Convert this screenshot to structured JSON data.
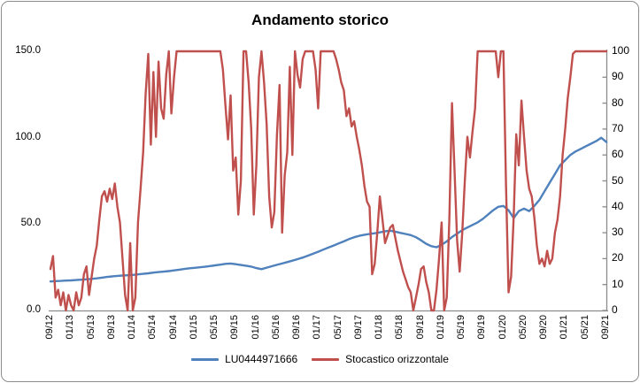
{
  "title": "Andamento storico",
  "colors": {
    "series_blue": "#4f81bd",
    "series_red": "#c0504d",
    "axis": "#8c8c8c",
    "border": "#8c8c8c",
    "text": "#000000"
  },
  "legend": {
    "items": [
      {
        "label": "LU0444971666",
        "color": "#4f81bd"
      },
      {
        "label": "Stocastico orizzontale",
        "color": "#c0504d"
      }
    ]
  },
  "chart_data": {
    "type": "line",
    "title": "Andamento storico",
    "grid": false,
    "legend_position": "bottom",
    "x_start": "09/12",
    "x_end": "09/21",
    "x_range_months": 108,
    "x_tick_labels": [
      "09/12",
      "01/13",
      "05/13",
      "09/13",
      "01/14",
      "05/14",
      "09/14",
      "01/15",
      "05/15",
      "09/15",
      "01/16",
      "05/16",
      "09/16",
      "01/17",
      "05/17",
      "09/17",
      "01/18",
      "05/18",
      "09/18",
      "01/19",
      "05/19",
      "09/19",
      "01/20",
      "05/20",
      "09/20",
      "01/21",
      "05/21",
      "09/21"
    ],
    "left_axis": {
      "range": [
        0,
        150
      ],
      "tick_step": 50,
      "tick_labels": [
        "0.0",
        "50.0",
        "100.0",
        "150.0"
      ],
      "applies_to": "LU0444971666"
    },
    "right_axis": {
      "range": [
        0,
        100
      ],
      "tick_step": 10,
      "tick_labels": [
        "0",
        "10",
        "20",
        "30",
        "40",
        "50",
        "60",
        "70",
        "80",
        "90",
        "100"
      ],
      "applies_to": "Stocastico orizzontale"
    },
    "series": [
      {
        "name": "LU0444971666",
        "axis": "left",
        "color": "#4f81bd",
        "sampling": "monthly from 09/2012 to 09/2021",
        "points_per_month": 1,
        "values": [
          16.8,
          17.0,
          17.1,
          17.3,
          17.4,
          17.6,
          17.8,
          18.0,
          18.3,
          18.6,
          19.0,
          19.4,
          19.7,
          20.0,
          20.2,
          20.4,
          20.6,
          20.9,
          21.2,
          21.5,
          21.9,
          22.2,
          22.5,
          22.8,
          23.2,
          23.6,
          24.0,
          24.4,
          24.7,
          25.0,
          25.3,
          25.7,
          26.1,
          26.5,
          27.0,
          27.2,
          26.8,
          26.3,
          25.9,
          25.4,
          24.5,
          23.9,
          24.8,
          25.6,
          26.4,
          27.2,
          28.0,
          28.8,
          29.7,
          30.6,
          31.7,
          32.8,
          34.0,
          35.2,
          36.4,
          37.6,
          38.8,
          40.0,
          41.3,
          42.4,
          43.2,
          43.8,
          44.3,
          44.7,
          45.2,
          45.8,
          46.2,
          45.6,
          44.9,
          44.3,
          43.6,
          42.4,
          40.6,
          38.6,
          37.2,
          36.6,
          38.0,
          40.0,
          42.5,
          44.5,
          46.5,
          48.0,
          49.5,
          51.0,
          53.0,
          55.5,
          58.0,
          60.0,
          60.5,
          58.0,
          53.5,
          57.5,
          59.0,
          57.5,
          60.5,
          64.0,
          69.0,
          74.0,
          79.0,
          84.0,
          87.0,
          90.0,
          92.0,
          93.5,
          95.0,
          96.5,
          98.0,
          100.0,
          97.5
        ]
      },
      {
        "name": "Stocastico orizzontale",
        "axis": "right",
        "color": "#c0504d",
        "sampling": "semi-monthly from 09/2012 to 09/2021",
        "points_per_month": 2,
        "values": [
          16,
          21,
          5,
          8,
          2,
          7,
          0,
          6,
          2,
          0,
          7,
          2,
          5,
          14,
          17,
          6,
          13,
          20,
          25,
          35,
          44,
          46,
          42,
          47,
          43,
          49,
          40,
          34,
          20,
          6,
          0,
          26,
          0,
          5,
          34,
          47,
          61,
          84,
          99,
          64,
          92,
          67,
          96,
          78,
          74,
          91,
          100,
          76,
          90,
          100,
          100,
          100,
          100,
          100,
          100,
          100,
          100,
          100,
          100,
          100,
          100,
          100,
          100,
          100,
          100,
          100,
          100,
          93,
          79,
          66,
          83,
          54,
          59,
          37,
          50,
          100,
          100,
          88,
          70,
          37,
          56,
          90,
          100,
          88,
          72,
          44,
          32,
          38,
          68,
          87,
          30,
          52,
          61,
          94,
          60,
          100,
          91,
          86,
          97,
          100,
          100,
          100,
          100,
          93,
          78,
          100,
          100,
          100,
          100,
          100,
          100,
          97,
          93,
          88,
          85,
          75,
          78,
          71,
          73,
          67,
          62,
          56,
          48,
          42,
          40,
          14,
          18,
          30,
          44,
          35,
          26,
          29,
          32,
          33,
          28,
          23,
          19,
          15,
          12,
          9,
          7,
          0,
          5,
          10,
          16,
          17,
          11,
          7,
          0,
          0,
          8,
          20,
          34,
          0,
          5,
          35,
          80,
          54,
          27,
          15,
          30,
          50,
          67,
          59,
          69,
          78,
          100,
          100,
          100,
          100,
          100,
          100,
          100,
          100,
          90,
          100,
          100,
          49,
          7,
          13,
          36,
          68,
          56,
          81,
          67,
          54,
          47,
          44,
          36,
          25,
          18,
          20,
          17,
          23,
          18,
          20,
          30,
          35,
          44,
          60,
          70,
          82,
          90,
          99,
          100,
          100,
          100,
          100,
          100,
          100,
          100,
          100,
          100,
          100,
          100,
          100,
          100
        ]
      }
    ]
  }
}
